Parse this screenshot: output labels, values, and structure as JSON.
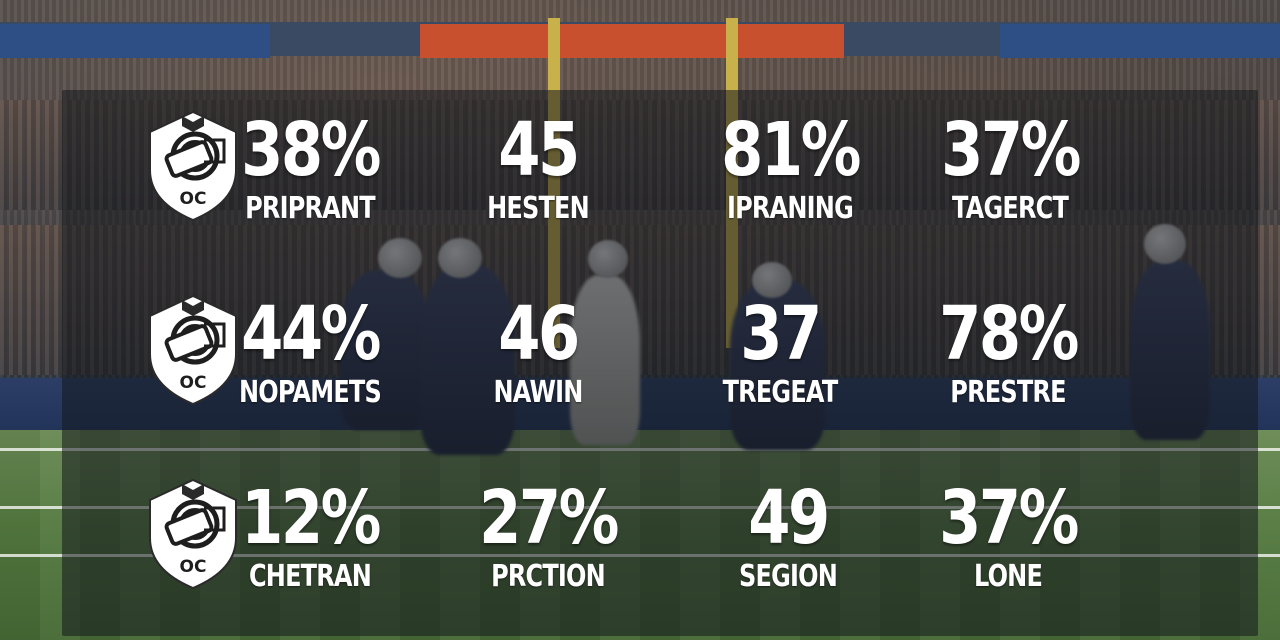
{
  "badge": {
    "icon": "team-shield-icon",
    "monogram": "OC"
  },
  "rows": [
    {
      "stats": [
        {
          "value": "38%",
          "label": "PRIPRANT"
        },
        {
          "value": "45",
          "label": "HESTEN"
        },
        {
          "value": "81%",
          "label": "IPRANING"
        },
        {
          "value": "37%",
          "label": "TAGERCT"
        }
      ]
    },
    {
      "stats": [
        {
          "value": "44%",
          "label": "NOPAMETS"
        },
        {
          "value": "46",
          "label": "NAWIN"
        },
        {
          "value": "37",
          "label": "TREGEAT"
        },
        {
          "value": "78%",
          "label": "PRESTRE"
        }
      ]
    },
    {
      "stats": [
        {
          "value": "12%",
          "label": "CHETRAN"
        },
        {
          "value": "27%",
          "label": "PRCTION"
        },
        {
          "value": "49",
          "label": "SEGION"
        },
        {
          "value": "37%",
          "label": "LONE"
        }
      ]
    }
  ],
  "colors": {
    "text": "#ffffff",
    "panel": "#14181e",
    "badge_fill": "#ffffff",
    "badge_ink": "#1e1e1e"
  }
}
